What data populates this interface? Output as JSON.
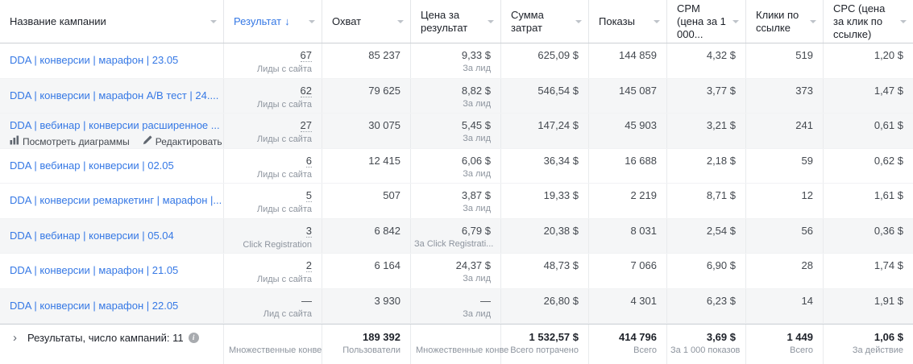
{
  "table": {
    "sort_indicator": "↓",
    "columns": [
      {
        "label": "Название кампании"
      },
      {
        "label": "Результат",
        "sorted": "desc"
      },
      {
        "label": "Охват"
      },
      {
        "label": "Цена за результат"
      },
      {
        "label": "Сумма затрат"
      },
      {
        "label": "Показы"
      },
      {
        "label": "CPM (цена за 1 000..."
      },
      {
        "label": "Клики по ссылке"
      },
      {
        "label": "CPC (цена за клик по ссылке)"
      }
    ],
    "row_actions": {
      "view_charts": "Посмотреть диаграммы",
      "edit": "Редактировать"
    },
    "rows": [
      {
        "name": "DDA | конверсии | марафон | 23.05",
        "result": "67",
        "result_label": "Лиды с сайта",
        "reach": "85 237",
        "cost_per_result": "9,33 $",
        "cost_label": "За лид",
        "spend": "625,09 $",
        "impressions": "144 859",
        "cpm": "4,32 $",
        "link_clicks": "519",
        "cpc": "1,20 $",
        "shaded": false,
        "hovered": false
      },
      {
        "name": "DDA | конверсии | марафон A/B тест | 24....",
        "result": "62",
        "result_label": "Лиды с сайта",
        "reach": "79 625",
        "cost_per_result": "8,82 $",
        "cost_label": "За лид",
        "spend": "546,54 $",
        "impressions": "145 087",
        "cpm": "3,77 $",
        "link_clicks": "373",
        "cpc": "1,47 $",
        "shaded": true,
        "hovered": false
      },
      {
        "name": "DDA | вебинар | конверсии расширенное ...",
        "result": "27",
        "result_label": "Лиды с сайта",
        "reach": "30 075",
        "cost_per_result": "5,45 $",
        "cost_label": "За лид",
        "spend": "147,24 $",
        "impressions": "45 903",
        "cpm": "3,21 $",
        "link_clicks": "241",
        "cpc": "0,61 $",
        "shaded": true,
        "hovered": true
      },
      {
        "name": "DDA | вебинар | конверсии | 02.05",
        "result": "6",
        "result_label": "Лиды с сайта",
        "reach": "12 415",
        "cost_per_result": "6,06 $",
        "cost_label": "За лид",
        "spend": "36,34 $",
        "impressions": "16 688",
        "cpm": "2,18 $",
        "link_clicks": "59",
        "cpc": "0,62 $",
        "shaded": false,
        "hovered": false
      },
      {
        "name": "DDA | конверсии ремаркетинг | марафон |...",
        "result": "5",
        "result_label": "Лиды с сайта",
        "reach": "507",
        "cost_per_result": "3,87 $",
        "cost_label": "За лид",
        "spend": "19,33 $",
        "impressions": "2 219",
        "cpm": "8,71 $",
        "link_clicks": "12",
        "cpc": "1,61 $",
        "shaded": false,
        "hovered": false
      },
      {
        "name": "DDA | вебинар | конверсии | 05.04",
        "result": "3",
        "result_label": "Click Registration",
        "reach": "6 842",
        "cost_per_result": "6,79 $",
        "cost_label": "За Click Registrati...",
        "spend": "20,38 $",
        "impressions": "8 031",
        "cpm": "2,54 $",
        "link_clicks": "56",
        "cpc": "0,36 $",
        "shaded": true,
        "hovered": false
      },
      {
        "name": "DDA | конверсии | марафон | 21.05",
        "result": "2",
        "result_label": "Лиды с сайта",
        "reach": "6 164",
        "cost_per_result": "24,37 $",
        "cost_label": "За лид",
        "spend": "48,73 $",
        "impressions": "7 066",
        "cpm": "6,90 $",
        "link_clicks": "28",
        "cpc": "1,74 $",
        "shaded": false,
        "hovered": false
      },
      {
        "name": "DDA | конверсии | марафон | 22.05",
        "result": "—",
        "result_label": "Лид с сайта",
        "reach": "3 930",
        "cost_per_result": "—",
        "cost_label": "За лид",
        "spend": "26,80 $",
        "impressions": "4 301",
        "cpm": "6,23 $",
        "link_clicks": "14",
        "cpc": "1,91 $",
        "shaded": true,
        "hovered": false
      }
    ],
    "footer": {
      "expander": "›",
      "label": "Результаты, число кампаний: 11",
      "info": "i",
      "result_label": "Множественные конве",
      "reach": "189 392",
      "reach_label": "Пользователи",
      "cost_label": "Множественные конве",
      "spend": "1 532,57 $",
      "spend_label": "Всего потрачено",
      "impressions": "414 796",
      "impressions_label": "Всего",
      "cpm": "3,69 $",
      "cpm_label": "За 1 000 показов",
      "link_clicks": "1 449",
      "clicks_label": "Всего",
      "cpc": "1,06 $",
      "cpc_label": "За действие"
    }
  },
  "colors": {
    "link_blue": "#3578e5",
    "row_shade": "#f5f6f7",
    "text_primary": "#444950",
    "text_secondary": "#8d949e",
    "border": "#e9ebed"
  }
}
